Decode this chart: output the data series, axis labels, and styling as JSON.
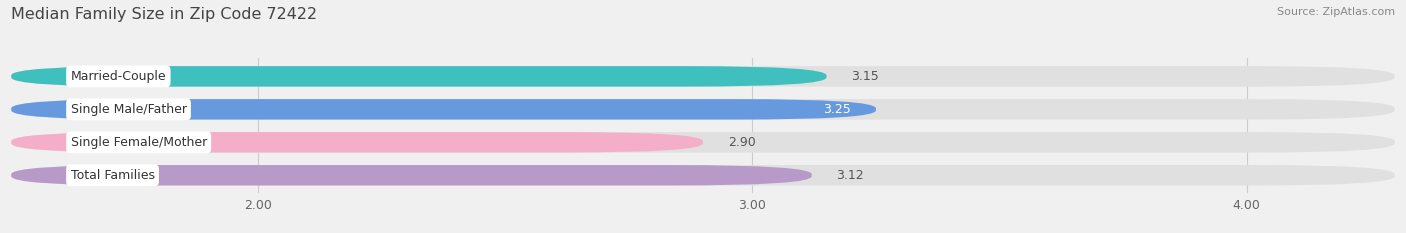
{
  "title": "Median Family Size in Zip Code 72422",
  "source": "Source: ZipAtlas.com",
  "categories": [
    "Married-Couple",
    "Single Male/Father",
    "Single Female/Mother",
    "Total Families"
  ],
  "values": [
    3.15,
    3.25,
    2.9,
    3.12
  ],
  "bar_colors": [
    "#40bfbf",
    "#6699dd",
    "#f5aec8",
    "#b89ac8"
  ],
  "bar_height": 0.62,
  "xmin": 1.5,
  "xlim": [
    1.5,
    4.3
  ],
  "xticks": [
    2.0,
    3.0,
    4.0
  ],
  "xtick_labels": [
    "2.00",
    "3.00",
    "4.00"
  ],
  "value_inside_bar": [
    false,
    true,
    false,
    false
  ],
  "background_color": "#f0f0f0",
  "bar_background_color": "#e0e0e0",
  "title_fontsize": 11.5,
  "tick_fontsize": 9,
  "label_fontsize": 9,
  "value_fontsize": 9,
  "source_fontsize": 8
}
